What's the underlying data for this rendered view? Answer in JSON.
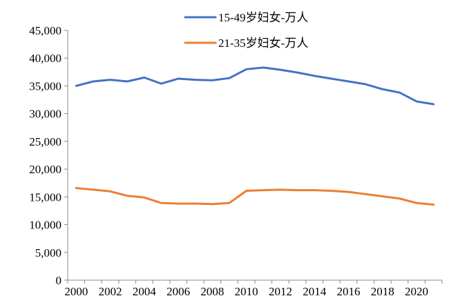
{
  "chart_data": {
    "type": "line",
    "x": [
      2000,
      2001,
      2002,
      2003,
      2004,
      2005,
      2006,
      2007,
      2008,
      2009,
      2010,
      2011,
      2012,
      2013,
      2014,
      2015,
      2016,
      2017,
      2018,
      2019,
      2020,
      2021
    ],
    "x_tick_labels": [
      "2000",
      "2002",
      "2004",
      "2006",
      "2008",
      "2010",
      "2012",
      "2014",
      "2016",
      "2018",
      "2020"
    ],
    "y_tick_labels": [
      "0",
      "5,000",
      "10,000",
      "15,000",
      "20,000",
      "25,000",
      "30,000",
      "35,000",
      "40,000",
      "45,000"
    ],
    "ylim": [
      0,
      45000
    ],
    "grid": false,
    "legend_position": "top-center",
    "series": [
      {
        "name": "15-49岁妇女-万人",
        "color": "#4472C4",
        "values": [
          35000,
          35800,
          36100,
          35800,
          36500,
          35400,
          36300,
          36100,
          36000,
          36400,
          38000,
          38300,
          37900,
          37400,
          36800,
          36300,
          35800,
          35300,
          34400,
          33800,
          32200,
          31700
        ]
      },
      {
        "name": "21-35岁妇女-万人",
        "color": "#ED7D31",
        "values": [
          16600,
          16300,
          16000,
          15200,
          14900,
          13900,
          13800,
          13800,
          13700,
          13900,
          16100,
          16200,
          16300,
          16200,
          16200,
          16100,
          15900,
          15500,
          15100,
          14700,
          13900,
          13600
        ]
      }
    ]
  }
}
